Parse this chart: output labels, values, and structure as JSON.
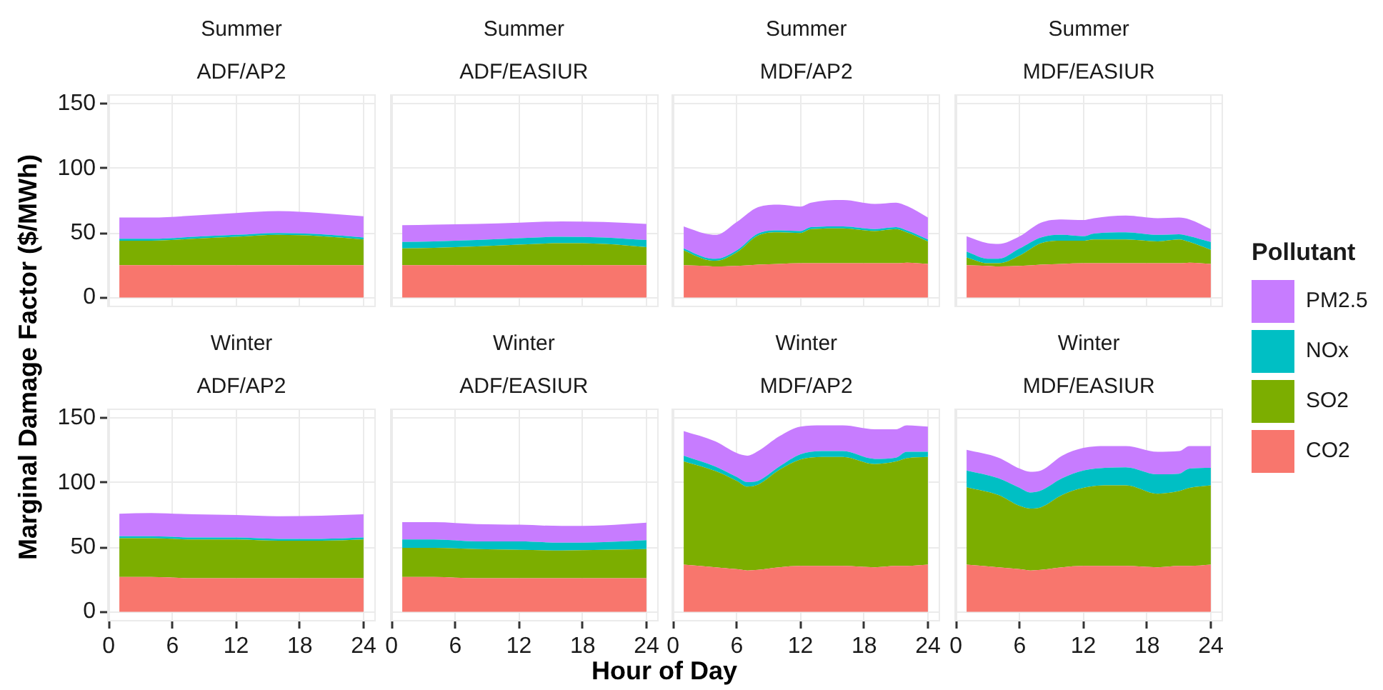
{
  "chart_data": [
    {
      "type": "area",
      "title": "Summer",
      "subtitle": "ADF/AP2",
      "ylabel": "Marginal Damage Factor ($/MWh)",
      "legend": "right",
      "legend_title": "Pollutant",
      "stacked": true,
      "grid": true,
      "tick_labels": "y",
      "xlim": [
        -0.15,
        25.15
      ],
      "xticks": [
        0,
        6,
        12,
        18,
        24
      ],
      "ylim": [
        -7.5,
        157.5
      ],
      "yticks": [
        0,
        50,
        100,
        150
      ],
      "x": [
        1,
        4,
        8,
        12,
        16,
        20,
        24
      ],
      "series": [
        {
          "name": "CO2",
          "color": "#f8766d",
          "values": [
            25,
            25,
            25,
            25,
            25,
            25,
            25
          ]
        },
        {
          "name": "SO2",
          "color": "#7cae00",
          "values": [
            19,
            19,
            20.5,
            22,
            23.5,
            22.5,
            20
          ]
        },
        {
          "name": "NOx",
          "color": "#00bfc4",
          "values": [
            1.5,
            1.5,
            1.5,
            1.5,
            1.5,
            1.5,
            1.5
          ]
        },
        {
          "name": "PM2.5",
          "color": "#c77cff",
          "values": [
            16.5,
            16.5,
            16.5,
            17,
            17,
            16.5,
            16.5
          ]
        }
      ]
    },
    {
      "type": "area",
      "title": "Summer",
      "subtitle": "ADF/EASIUR",
      "stacked": true,
      "grid": true,
      "tick_labels": false,
      "xlim": [
        -0.15,
        25.15
      ],
      "xticks": [
        0,
        6,
        12,
        18,
        24
      ],
      "ylim": [
        -7.5,
        157.5
      ],
      "yticks": [
        0,
        50,
        100,
        150
      ],
      "x": [
        1,
        4,
        8,
        12,
        16,
        20,
        24
      ],
      "series": [
        {
          "color": "#f8766d",
          "values": [
            25,
            25,
            25,
            25,
            25,
            25,
            25
          ]
        },
        {
          "color": "#7cae00",
          "values": [
            13,
            13.5,
            14.5,
            16,
            17,
            16.5,
            14
          ]
        },
        {
          "color": "#00bfc4",
          "values": [
            5,
            5,
            5,
            5,
            5,
            5,
            5.5
          ]
        },
        {
          "color": "#c77cff",
          "values": [
            13,
            13,
            12.5,
            12,
            12,
            12,
            12.5
          ]
        }
      ]
    },
    {
      "type": "area",
      "title": "Summer",
      "subtitle": "MDF/AP2",
      "stacked": true,
      "grid": true,
      "tick_labels": false,
      "xlim": [
        -0.15,
        25.15
      ],
      "xticks": [
        0,
        6,
        12,
        18,
        24
      ],
      "ylim": [
        -7.5,
        157.5
      ],
      "yticks": [
        0,
        50,
        100,
        150
      ],
      "x": [
        1,
        3,
        4,
        6,
        8,
        10,
        12,
        13,
        16,
        19,
        21,
        22,
        24
      ],
      "series": [
        {
          "color": "#f8766d",
          "values": [
            25,
            24.5,
            24,
            24.5,
            25.5,
            26,
            26.5,
            26.5,
            26.5,
            26.5,
            26.5,
            27,
            26
          ]
        },
        {
          "color": "#7cae00",
          "values": [
            11.5,
            5,
            4.5,
            10.5,
            22.5,
            24.5,
            23.5,
            26.5,
            27,
            25,
            26.5,
            23.5,
            17.5
          ]
        },
        {
          "color": "#00bfc4",
          "values": [
            1.5,
            1.5,
            1.5,
            1.5,
            1.5,
            1.5,
            1.5,
            1.5,
            1.5,
            1.5,
            1.5,
            1.5,
            1.5
          ]
        },
        {
          "color": "#c77cff",
          "values": [
            17,
            18.5,
            18.5,
            22,
            20.5,
            20,
            19,
            19,
            20.5,
            19.5,
            19,
            19,
            17
          ]
        }
      ]
    },
    {
      "type": "area",
      "title": "Summer",
      "subtitle": "MDF/EASIUR",
      "stacked": true,
      "grid": true,
      "tick_labels": false,
      "xlim": [
        -0.15,
        25.15
      ],
      "xticks": [
        0,
        6,
        12,
        18,
        24
      ],
      "ylim": [
        -7.5,
        157.5
      ],
      "yticks": [
        0,
        50,
        100,
        150
      ],
      "x": [
        1,
        3,
        4,
        6,
        8,
        10,
        12,
        13,
        16,
        19,
        21,
        22,
        24
      ],
      "series": [
        {
          "color": "#f8766d",
          "values": [
            25,
            24.5,
            24,
            24.5,
            25.5,
            26,
            26.5,
            26.5,
            26.5,
            26.5,
            26.5,
            27,
            26
          ]
        },
        {
          "color": "#7cae00",
          "values": [
            6,
            2,
            2.5,
            8,
            16.5,
            18,
            17.5,
            18.5,
            18.5,
            17,
            18.5,
            16,
            11
          ]
        },
        {
          "color": "#00bfc4",
          "values": [
            4.5,
            3.5,
            3.5,
            5.5,
            4.5,
            4.5,
            3.5,
            4.5,
            5.5,
            5,
            4,
            4.5,
            6
          ]
        },
        {
          "color": "#c77cff",
          "values": [
            12,
            12,
            11.5,
            9.5,
            11.5,
            12,
            12.5,
            12,
            13,
            13,
            13,
            13,
            10
          ]
        }
      ]
    },
    {
      "type": "area",
      "title": "Winter",
      "subtitle": "ADF/AP2",
      "stacked": true,
      "grid": true,
      "xlim": [
        -0.15,
        25.15
      ],
      "xticks": [
        0,
        6,
        12,
        18,
        24
      ],
      "ylim": [
        -7.5,
        157.5
      ],
      "yticks": [
        0,
        50,
        100,
        150
      ],
      "x": [
        1,
        4,
        8,
        12,
        16,
        20,
        24
      ],
      "series": [
        {
          "color": "#f8766d",
          "values": [
            27,
            27,
            26,
            26,
            26,
            26,
            26
          ]
        },
        {
          "color": "#7cae00",
          "values": [
            30,
            30,
            30,
            30,
            29,
            29,
            30
          ]
        },
        {
          "color": "#00bfc4",
          "values": [
            1.5,
            1.5,
            1.5,
            1.5,
            1.5,
            1.5,
            1.5
          ]
        },
        {
          "color": "#c77cff",
          "values": [
            17.5,
            18,
            18,
            17.5,
            17.5,
            18,
            18
          ]
        }
      ]
    },
    {
      "type": "area",
      "title": "Winter",
      "subtitle": "ADF/EASIUR",
      "xlabel": "Hour of Day",
      "stacked": true,
      "grid": true,
      "tick_labels": "x",
      "xlim": [
        -0.15,
        25.15
      ],
      "xticks": [
        0,
        6,
        12,
        18,
        24
      ],
      "ylim": [
        -7.5,
        157.5
      ],
      "yticks": [
        0,
        50,
        100,
        150
      ],
      "x": [
        1,
        4,
        8,
        12,
        16,
        20,
        24
      ],
      "series": [
        {
          "color": "#f8766d",
          "values": [
            27,
            27,
            26,
            26,
            26,
            26,
            26
          ]
        },
        {
          "color": "#7cae00",
          "values": [
            22.5,
            22.5,
            22.5,
            22,
            21.5,
            22,
            22.5
          ]
        },
        {
          "color": "#00bfc4",
          "values": [
            6.5,
            6.5,
            6,
            6.5,
            6,
            6,
            7
          ]
        },
        {
          "color": "#c77cff",
          "values": [
            13.5,
            13.5,
            13.5,
            13,
            13,
            13,
            13.5
          ]
        }
      ]
    },
    {
      "type": "area",
      "title": "Winter",
      "subtitle": "MDF/AP2",
      "stacked": true,
      "grid": true,
      "tick_labels": "x",
      "xlim": [
        -0.15,
        25.15
      ],
      "xticks": [
        0,
        6,
        12,
        18,
        24
      ],
      "ylim": [
        -7.5,
        157.5
      ],
      "yticks": [
        0,
        50,
        100,
        150
      ],
      "x": [
        1,
        4,
        6,
        7,
        8,
        10,
        12,
        14,
        16,
        19,
        21,
        22,
        24
      ],
      "series": [
        {
          "color": "#f8766d",
          "values": [
            36.5,
            34.5,
            33,
            32,
            32.5,
            34.5,
            35.5,
            35.5,
            35.5,
            34.5,
            35.5,
            35.5,
            36.5
          ]
        },
        {
          "color": "#7cae00",
          "values": [
            80,
            74.5,
            68.5,
            65,
            66,
            75.5,
            82.5,
            84.5,
            84.5,
            80,
            81,
            83.5,
            83.5
          ]
        },
        {
          "color": "#00bfc4",
          "values": [
            4.5,
            3.5,
            3,
            3.5,
            3,
            2.5,
            4,
            4.5,
            4.5,
            4,
            3,
            5,
            4
          ]
        },
        {
          "color": "#c77cff",
          "values": [
            19,
            19.5,
            18.5,
            20.5,
            23,
            23.5,
            21.5,
            20,
            20,
            23,
            22,
            20.5,
            19.5
          ]
        }
      ]
    },
    {
      "type": "area",
      "title": "Winter",
      "subtitle": "MDF/EASIUR",
      "stacked": true,
      "grid": true,
      "tick_labels": "x",
      "xlim": [
        -0.15,
        25.15
      ],
      "xticks": [
        0,
        6,
        12,
        18,
        24
      ],
      "ylim": [
        -7.5,
        157.5
      ],
      "yticks": [
        0,
        50,
        100,
        150
      ],
      "x": [
        1,
        4,
        6,
        7,
        8,
        10,
        12,
        14,
        16,
        19,
        21,
        22,
        24
      ],
      "series": [
        {
          "color": "#f8766d",
          "values": [
            36.5,
            34.5,
            33,
            32,
            32.5,
            34.5,
            35.5,
            35.5,
            35.5,
            34.5,
            35.5,
            35.5,
            36.5
          ]
        },
        {
          "color": "#7cae00",
          "values": [
            60,
            56,
            49,
            48,
            48.5,
            56,
            60.5,
            62.5,
            62.5,
            57,
            58,
            60.5,
            61.5
          ]
        },
        {
          "color": "#00bfc4",
          "values": [
            13,
            13,
            14,
            12.5,
            13,
            13,
            13.5,
            13.5,
            14,
            15,
            13.5,
            15,
            13.5
          ]
        },
        {
          "color": "#c77cff",
          "values": [
            16,
            16,
            15,
            16,
            15.5,
            17.5,
            17.5,
            17,
            16.5,
            17.5,
            17.5,
            17.5,
            17
          ]
        }
      ]
    }
  ]
}
